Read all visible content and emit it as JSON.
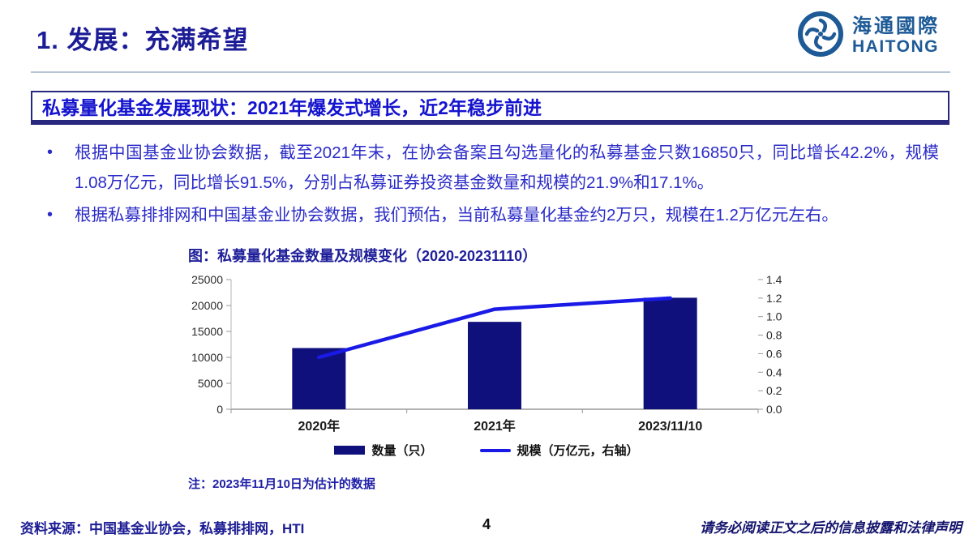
{
  "header": {
    "title": "1. 发展：充满希望"
  },
  "logo": {
    "name_cn": "海通國際",
    "name_en": "HAITONG",
    "color": "#1d5a96"
  },
  "banner": {
    "text": "私募量化基金发展现状：2021年爆发式增长，近2年稳步前进"
  },
  "bullets": [
    "根据中国基金业协会数据，截至2021年末，在协会备案且勾选量化的私募基金只数16850只，同比增长42.2%，规模1.08万亿元，同比增长91.5%，分别占私募证券投资基金数量和规模的21.9%和17.1%。",
    "根据私募排排网和中国基金业协会数据，我们预估，当前私募量化基金约2万只，规模在1.2万亿元左右。"
  ],
  "chart": {
    "title": "图：私募量化基金数量及规模变化（2020-20231110）",
    "note": "注：2023年11月10日为估计的数据"
  },
  "chart_data": {
    "type": "bar",
    "categories": [
      "2020年",
      "2021年",
      "2023/11/10"
    ],
    "series": [
      {
        "name": "数量（只）",
        "type": "bar",
        "axis": "left",
        "values": [
          11800,
          16850,
          21500
        ],
        "color": "#10107c"
      },
      {
        "name": "规模（万亿元，右轴）",
        "type": "line",
        "axis": "right",
        "values": [
          0.56,
          1.08,
          1.2
        ],
        "color": "#1a1ae6"
      }
    ],
    "left_axis": {
      "min": 0,
      "max": 25000,
      "step": 5000
    },
    "right_axis": {
      "min": 0,
      "max": 1.4,
      "step": 0.2
    },
    "grid": false,
    "legend_position": "bottom"
  },
  "footer": {
    "source": "资料来源：中国基金业协会，私募排排网，HTI",
    "page_number": "4",
    "disclaimer": "请务必阅读正文之后的信息披露和法律声明"
  },
  "colors": {
    "bar": "#10107c",
    "line": "#1a1ae6",
    "title": "#1c1c96",
    "banner_text": "#1413ce",
    "body_text": "#2b2bc8"
  }
}
